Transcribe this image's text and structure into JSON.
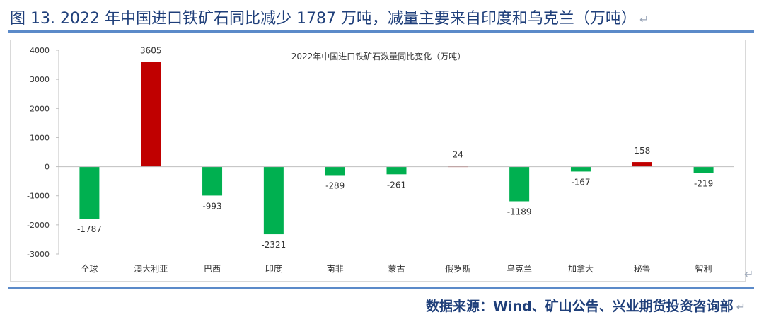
{
  "figure": {
    "title": "图 13. 2022 年中国进口铁矿石同比减少 1787 万吨，减量主要来自印度和乌克兰（万吨）",
    "source": "数据来源：Wind、矿山公告、兴业期货投资咨询部",
    "return_mark": "↵"
  },
  "colors": {
    "positive": "#c00000",
    "negative": "#00b050",
    "title": "#1f3f7a",
    "rule": "#5b8ac9"
  },
  "chart_data": {
    "type": "bar",
    "title": "2022年中国进口铁矿石数量同比变化（万吨）",
    "categories": [
      "全球",
      "澳大利亚",
      "巴西",
      "印度",
      "南非",
      "蒙古",
      "俄罗斯",
      "乌克兰",
      "加拿大",
      "秘鲁",
      "智利"
    ],
    "values": [
      -1787,
      3605,
      -993,
      -2321,
      -289,
      -261,
      24,
      -1189,
      -167,
      158,
      -219
    ],
    "ylim": [
      -3000,
      4000
    ],
    "yticks": [
      4000,
      3000,
      2000,
      1000,
      0,
      -1000,
      -2000,
      -3000
    ],
    "xlabel": "",
    "ylabel": "",
    "grid": false,
    "legend": "none"
  }
}
